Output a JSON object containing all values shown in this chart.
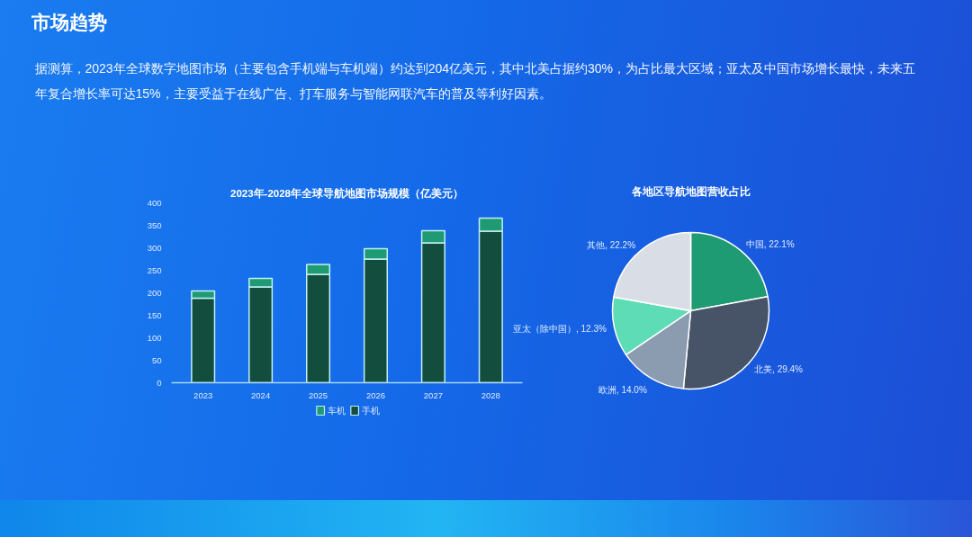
{
  "chart_data": [
    {
      "type": "other",
      "title": "市场趋势",
      "annotations": [
        "据测算，2023年全球数字地图市场（主要包含手机端与车机端）约达到204亿美元，其中北美占据约30%，为占比最大区域；亚太及中国市场增长最快，未来五年复合增长率可达15%，主要受益于在线广告、打车服务与智能网联汽车的普及等利好因素。"
      ]
    },
    {
      "type": "bar",
      "title": "2023年-2028年全球导航地图市场规模（亿美元）",
      "categories": [
        "2023",
        "2024",
        "2025",
        "2026",
        "2027",
        "2028"
      ],
      "stacked": true,
      "series": [
        {
          "name": "手机",
          "color": "#124d3d",
          "values": [
            188,
            213,
            241,
            275,
            311,
            337
          ]
        },
        {
          "name": "车机",
          "color": "#1f9b74",
          "values": [
            16,
            19,
            22,
            23,
            27,
            29
          ]
        }
      ],
      "ylim": [
        0,
        400
      ],
      "yticks": [
        0,
        50,
        100,
        150,
        200,
        250,
        300,
        350,
        400
      ],
      "legend": "bottom"
    },
    {
      "type": "pie",
      "title": "各地区导航地图营收占比",
      "categories": [
        "中国",
        "北美",
        "欧洲",
        "亚太（除中国）",
        "其他"
      ],
      "values": [
        22.1,
        29.4,
        14.0,
        12.3,
        22.2
      ],
      "value_labels": [
        "22.1%",
        "29.4%",
        "14.0%",
        "12.3%",
        "22.2%"
      ],
      "colors": [
        "#1e9b73",
        "#475467",
        "#8b9bb0",
        "#5ddcb5",
        "#d9dde6"
      ]
    }
  ]
}
